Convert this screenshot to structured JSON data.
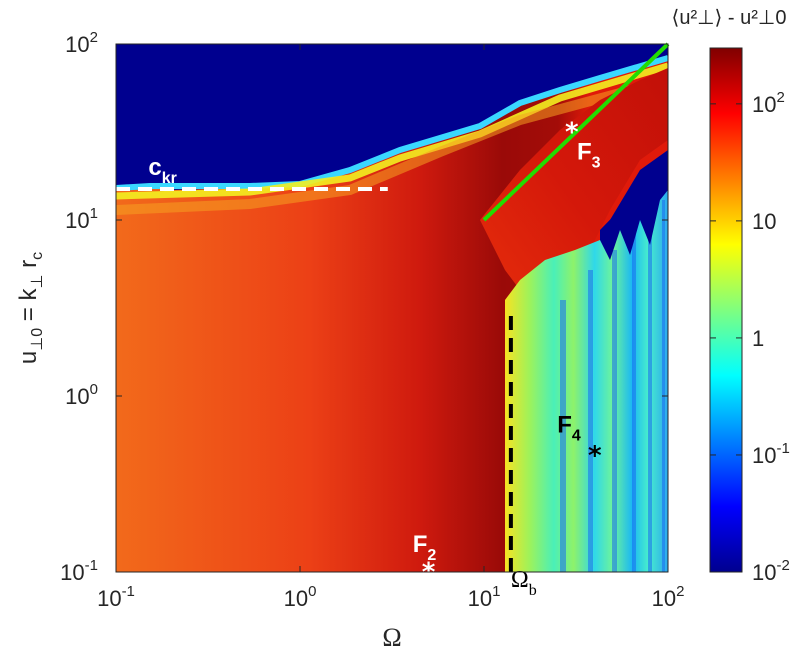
{
  "chart_data": {
    "type": "heatmap",
    "xlabel": "Ω",
    "ylabel": {
      "main": "u",
      "sub1": "⊥0",
      "mid": " = k",
      "sub2": "⊥",
      "mid2": " r",
      "sub3": "c"
    },
    "xscale": "log",
    "yscale": "log",
    "xlim": [
      0.1,
      100
    ],
    "ylim": [
      0.1,
      100
    ],
    "x_ticks": [
      {
        "base": "10",
        "exp": "-1",
        "value": 0.1
      },
      {
        "base": "10",
        "exp": "0",
        "value": 1
      },
      {
        "base": "10",
        "exp": "1",
        "value": 10
      },
      {
        "base": "10",
        "exp": "2",
        "value": 100
      }
    ],
    "y_ticks": [
      {
        "base": "10",
        "exp": "-1",
        "value": 0.1
      },
      {
        "base": "10",
        "exp": "0",
        "value": 1
      },
      {
        "base": "10",
        "exp": "1",
        "value": 10
      },
      {
        "base": "10",
        "exp": "2",
        "value": 100
      }
    ],
    "colorbar": {
      "title": "⟨u²⊥⟩ - u²⊥0",
      "scale": "log",
      "range": [
        0.01,
        300
      ],
      "ticks": [
        {
          "label_base": "10",
          "label_exp": "-2",
          "value": 0.01
        },
        {
          "label_base": "10",
          "label_exp": "-1",
          "value": 0.1
        },
        {
          "label_base": "1",
          "label_exp": "",
          "value": 1
        },
        {
          "label_base": "10",
          "label_exp": "",
          "value": 10
        },
        {
          "label_base": "10",
          "label_exp": "2",
          "value": 100
        }
      ],
      "colormap": "jet"
    },
    "annotations": [
      {
        "label": "c",
        "sub": "kr",
        "color": "#ffffff",
        "x": 0.15,
        "y": 18
      },
      {
        "label": "F",
        "sub": "3",
        "color": "#ffffff",
        "x": 32,
        "y": 22
      },
      {
        "label": "F",
        "sub": "4",
        "color": "#000000",
        "x": 25,
        "y": 0.62
      },
      {
        "label": "F",
        "sub": "2",
        "color": "#ffffff",
        "x": 4.1,
        "y": 0.13
      },
      {
        "label": "Ω",
        "sub": "b",
        "color": "#000000",
        "x": 14,
        "y": 0.082
      }
    ],
    "markers": [
      {
        "name": "F3",
        "x": 30,
        "y": 33,
        "color": "#ffffff"
      },
      {
        "name": "F4",
        "x": 40,
        "y": 0.48,
        "color": "#000000"
      },
      {
        "name": "F2",
        "x": 5,
        "y": 0.105,
        "color": "#ffffff"
      }
    ],
    "lines": [
      {
        "name": "ckr",
        "style": "dashed",
        "color": "#ffffff",
        "x": [
          0.1,
          3
        ],
        "y": [
          15,
          15
        ]
      },
      {
        "name": "green-fit",
        "style": "solid",
        "color": "#22dd00",
        "x": [
          10,
          100
        ],
        "y": [
          10,
          100
        ]
      },
      {
        "name": "omega-b",
        "style": "dashed",
        "color": "#000000",
        "x": [
          14,
          14
        ],
        "y": [
          0.1,
          3
        ]
      }
    ]
  }
}
